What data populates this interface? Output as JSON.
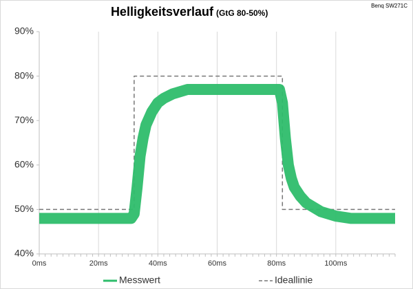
{
  "chart_data": {
    "type": "line",
    "title": "Helligkeitsverlauf",
    "subtitle": "(GtG 80-50%)",
    "annotation": "Benq SW271C",
    "xlim": [
      0,
      120
    ],
    "xticks": [
      {
        "value": 0,
        "label": "0ms"
      },
      {
        "value": 20,
        "label": "20ms"
      },
      {
        "value": 40,
        "label": "40ms"
      },
      {
        "value": 60,
        "label": "60ms"
      },
      {
        "value": 80,
        "label": "80ms"
      },
      {
        "value": 100,
        "label": "100ms"
      }
    ],
    "ylim": [
      40,
      90
    ],
    "yticks": [
      {
        "value": 40,
        "label": "40%"
      },
      {
        "value": 50,
        "label": "50%"
      },
      {
        "value": 60,
        "label": "60%"
      },
      {
        "value": 70,
        "label": "70%"
      },
      {
        "value": 80,
        "label": "80%"
      },
      {
        "value": 90,
        "label": "90%"
      }
    ],
    "grid": true,
    "legend": "bottom",
    "series": [
      {
        "name": "Messwert",
        "color": "#2ebd6b",
        "style": "solid",
        "x": [
          0,
          4,
          8,
          12,
          16,
          20,
          24,
          28,
          31,
          32,
          33,
          34,
          35,
          36,
          38,
          40,
          42,
          45,
          50,
          55,
          60,
          65,
          70,
          75,
          80,
          81,
          82,
          83,
          84,
          85,
          86,
          88,
          90,
          95,
          100,
          105,
          110,
          115,
          120
        ],
        "values": [
          48,
          48,
          48,
          48,
          48,
          48,
          48,
          48,
          48,
          49,
          55,
          62,
          66,
          69,
          72,
          74,
          75,
          76,
          77,
          77,
          77,
          77,
          77,
          77,
          77,
          77,
          74,
          66,
          60,
          57,
          55,
          53,
          51.5,
          49.5,
          48.5,
          48,
          48,
          48,
          48
        ]
      },
      {
        "name": "Ideallinie",
        "color": "#777777",
        "style": "dashed",
        "x": [
          0,
          32,
          32,
          82,
          82,
          120
        ],
        "values": [
          50,
          50,
          80,
          80,
          50,
          50
        ]
      }
    ]
  }
}
